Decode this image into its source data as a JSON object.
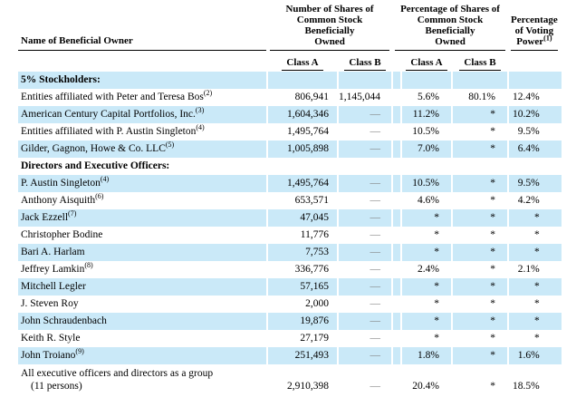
{
  "table": {
    "headers": {
      "name": "Name of Beneficial Owner",
      "shares_group": "Number of Shares of\nCommon Stock\nBeneficially\nOwned",
      "pct_group": "Percentage of Shares of\nCommon Stock\nBeneficially\nOwned",
      "voting_group": "Percentage\nof Voting\nPower",
      "voting_footnote": "(1)",
      "class_a": "Class A",
      "class_b": "Class B"
    },
    "rows": [
      {
        "name": "5% Stockholders:",
        "section": true
      },
      {
        "name": "Entities affiliated with Peter and Teresa Bos",
        "sup": "(2)",
        "shares_a": "806,941",
        "shares_b": "1,145,044",
        "pct_a": "5.6%",
        "pct_b": "80.1%",
        "voting": "12.4%"
      },
      {
        "name": "American Century Capital Portfolios, Inc.",
        "sup": "(3)",
        "shares_a": "1,604,346",
        "shares_b": "—",
        "pct_a": "11.2%",
        "pct_b": "*",
        "voting": "10.2%"
      },
      {
        "name": "Entities affiliated with P. Austin Singleton",
        "sup": "(4)",
        "shares_a": "1,495,764",
        "shares_b": "—",
        "pct_a": "10.5%",
        "pct_b": "*",
        "voting": "9.5%"
      },
      {
        "name": "Gilder, Gagnon, Howe & Co. LLC",
        "sup": "(5)",
        "shares_a": "1,005,898",
        "shares_b": "—",
        "pct_a": "7.0%",
        "pct_b": "*",
        "voting": "6.4%"
      },
      {
        "name": "Directors and Executive Officers:",
        "section": true
      },
      {
        "name": "P. Austin Singleton",
        "sup": "(4)",
        "shares_a": "1,495,764",
        "shares_b": "—",
        "pct_a": "10.5%",
        "pct_b": "*",
        "voting": "9.5%"
      },
      {
        "name": "Anthony Aisquith",
        "sup": "(6)",
        "shares_a": "653,571",
        "shares_b": "—",
        "pct_a": "4.6%",
        "pct_b": "*",
        "voting": "4.2%"
      },
      {
        "name": "Jack Ezzell",
        "sup": "(7)",
        "shares_a": "47,045",
        "shares_b": "—",
        "pct_a": "*",
        "pct_b": "*",
        "voting": "*"
      },
      {
        "name": "Christopher Bodine",
        "shares_a": "11,776",
        "shares_b": "—",
        "pct_a": "*",
        "pct_b": "*",
        "voting": "*"
      },
      {
        "name": "Bari A. Harlam",
        "shares_a": "7,753",
        "shares_b": "—",
        "pct_a": "*",
        "pct_b": "*",
        "voting": "*"
      },
      {
        "name": "Jeffrey Lamkin",
        "sup": "(8)",
        "shares_a": "336,776",
        "shares_b": "—",
        "pct_a": "2.4%",
        "pct_b": "*",
        "voting": "2.1%"
      },
      {
        "name": "Mitchell Legler",
        "shares_a": "57,165",
        "shares_b": "—",
        "pct_a": "*",
        "pct_b": "*",
        "voting": "*"
      },
      {
        "name": "J. Steven Roy",
        "shares_a": "2,000",
        "shares_b": "—",
        "pct_a": "*",
        "pct_b": "*",
        "voting": "*"
      },
      {
        "name": "John Schraudenbach",
        "shares_a": "19,876",
        "shares_b": "—",
        "pct_a": "*",
        "pct_b": "*",
        "voting": "*"
      },
      {
        "name": "Keith R. Style",
        "shares_a": "27,179",
        "shares_b": "—",
        "pct_a": "*",
        "pct_b": "*",
        "voting": "*"
      },
      {
        "name": "John Troiano",
        "sup": "(9)",
        "shares_a": "251,493",
        "shares_b": "—",
        "pct_a": "1.8%",
        "pct_b": "*",
        "voting": "1.6%"
      },
      {
        "name": "All executive officers and directors as a group",
        "name2": "(11 persons)",
        "shares_a": "2,910,398",
        "shares_b": "—",
        "pct_a": "20.4%",
        "pct_b": "*",
        "voting": "18.5%"
      }
    ],
    "colors": {
      "row_stripe": "#cae9f8",
      "text": "#000000",
      "dash_muted": "#808080",
      "rule": "#000000"
    }
  }
}
